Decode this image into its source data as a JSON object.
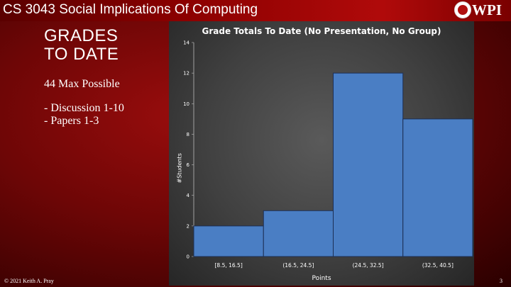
{
  "header": {
    "course_title": "CS 3043 Social Implications Of Computing",
    "logo_text": "WPI"
  },
  "content": {
    "heading_line1": "GRADES",
    "heading_line2": "TO DATE",
    "max_possible": "44 Max Possible",
    "items": [
      "- Discussion 1-10",
      "- Papers 1-3"
    ]
  },
  "footer": {
    "copyright": "© 2021 Keith A. Pray",
    "page_number": "3"
  },
  "colors": {
    "bar_fill": "#4a7ec4",
    "bar_stroke": "#1c2f55",
    "header_red": "#8a0000"
  },
  "chart_data": {
    "type": "bar",
    "title": "Grade Totals To Date (No Presentation, No Group)",
    "xlabel": "Points",
    "ylabel": "#Students",
    "categories": [
      "[8.5, 16.5]",
      "(16.5, 24.5]",
      "(24.5, 32.5]",
      "(32.5, 40.5]"
    ],
    "values": [
      2,
      3,
      12,
      9
    ],
    "ylim": [
      0,
      14
    ],
    "yticks": [
      0,
      2,
      4,
      6,
      8,
      10,
      12,
      14
    ],
    "grid": false
  }
}
